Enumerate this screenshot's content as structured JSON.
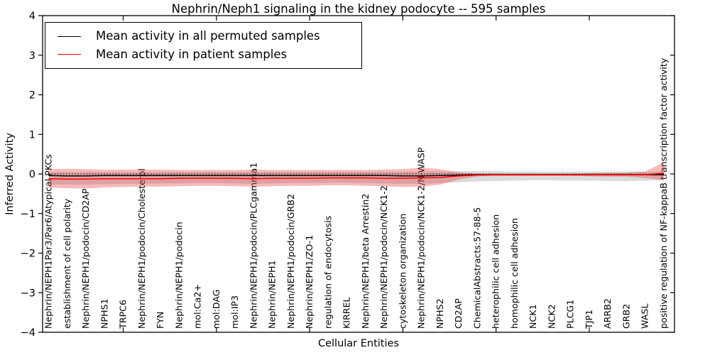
{
  "title": "Nephrin/Neph1 signaling in the kidney podocyte -- 595 samples",
  "axes": {
    "x_label": "Cellular Entities",
    "y_label": "Inferred Activity"
  },
  "legend": {
    "items": [
      {
        "label": "Mean activity in all permuted samples",
        "color": "#000000"
      },
      {
        "label": "Mean activity in patient samples",
        "color": "#ff0000"
      }
    ]
  },
  "chart_data": {
    "type": "line",
    "title": "Nephrin/Neph1 signaling in the kidney podocyte -- 595 samples",
    "xlabel": "Cellular Entities",
    "ylabel": "Inferred Activity",
    "ylim": [
      -4,
      4
    ],
    "yticks": [
      4,
      3,
      2,
      1,
      0,
      -1,
      -2,
      -3,
      -4
    ],
    "x_major_tick_indices": [
      4,
      9,
      14,
      19,
      24,
      29
    ],
    "grid": false,
    "legend_position": "upper left",
    "zero_line": 0,
    "categories": [
      "Nephrin/NEPH1Par3/Par6/Atypical PKCs",
      "establishment of cell polarity",
      "Nephrin/NEPH1/podocin/CD2AP",
      "NPHS1",
      "TRPC6",
      "Nephrin/NEPH1/podocin/Cholesterol",
      "FYN",
      "Nephrin/NEPH1/podocin",
      "mol:Ca2+",
      "mol:DAG",
      "mol:IP3",
      "Nephrin/NEPH1/podocin/PLCgamma1",
      "Nephrin/NEPH1",
      "Nephrin/NEPH1/podocin/GRB2",
      "Nephrin/NEPH1/ZO-1",
      "regulation of endocytosis",
      "KIRREL",
      "Nephrin/NEPH1/beta Arrestin2",
      "Nephrin/NEPH1/podocin/NCK1-2",
      "cytoskeleton organization",
      "Nephrin/NEPH1/podocin/NCK1-2/N-WASP",
      "NPHS2",
      "CD2AP",
      "ChemicalAbstracts:57-88-5",
      "heterophilic cell adhesion",
      "homophilic cell adhesion",
      "NCK1",
      "NCK2",
      "PLCG1",
      "TJP1",
      "ARRB2",
      "GRB2",
      "WASL",
      "positive regulation of NF-kappaB transcription factor activity"
    ],
    "series": [
      {
        "name": "Mean activity in all permuted samples",
        "color": "#000000",
        "values": [
          -0.04,
          -0.05,
          -0.05,
          -0.04,
          -0.04,
          -0.04,
          -0.04,
          -0.04,
          -0.04,
          -0.04,
          -0.04,
          -0.04,
          -0.04,
          -0.04,
          -0.04,
          -0.04,
          -0.04,
          -0.04,
          -0.04,
          -0.05,
          -0.05,
          -0.04,
          -0.03,
          -0.02,
          -0.02,
          -0.02,
          -0.02,
          -0.02,
          -0.02,
          -0.02,
          -0.02,
          -0.02,
          -0.02,
          -0.02
        ]
      },
      {
        "name": "Mean activity in patient samples",
        "color": "#ff0000",
        "values": [
          -0.12,
          -0.13,
          -0.13,
          -0.12,
          -0.12,
          -0.12,
          -0.12,
          -0.11,
          -0.11,
          -0.11,
          -0.11,
          -0.12,
          -0.11,
          -0.11,
          -0.11,
          -0.1,
          -0.1,
          -0.1,
          -0.11,
          -0.11,
          -0.1,
          -0.09,
          -0.05,
          -0.03,
          -0.02,
          -0.02,
          -0.02,
          -0.02,
          -0.02,
          -0.02,
          -0.02,
          -0.02,
          -0.02,
          0.02
        ]
      }
    ],
    "bands": [
      {
        "name": "permuted-samples-std-band",
        "color": "#909090",
        "opacity": 0.32,
        "upper": [
          0.05,
          0.05,
          0.05,
          0.05,
          0.05,
          0.05,
          0.05,
          0.05,
          0.05,
          0.05,
          0.05,
          0.05,
          0.05,
          0.05,
          0.05,
          0.05,
          0.05,
          0.05,
          0.05,
          0.05,
          0.06,
          0.06,
          0.07,
          0.07,
          0.07,
          0.06,
          0.06,
          0.06,
          0.06,
          0.06,
          0.06,
          0.06,
          0.06,
          0.06
        ],
        "lower": [
          -0.26,
          -0.27,
          -0.27,
          -0.26,
          -0.25,
          -0.25,
          -0.24,
          -0.24,
          -0.23,
          -0.23,
          -0.24,
          -0.25,
          -0.24,
          -0.23,
          -0.23,
          -0.22,
          -0.22,
          -0.23,
          -0.24,
          -0.25,
          -0.25,
          -0.23,
          -0.21,
          -0.19,
          -0.18,
          -0.17,
          -0.16,
          -0.16,
          -0.17,
          -0.17,
          -0.18,
          -0.18,
          -0.17,
          -0.16
        ]
      },
      {
        "name": "patient-samples-std-band",
        "color": "#e41a1c",
        "opacity": 0.3,
        "upper": [
          0.12,
          0.13,
          0.12,
          0.11,
          0.11,
          0.11,
          0.11,
          0.1,
          0.1,
          0.1,
          0.1,
          0.11,
          0.1,
          0.1,
          0.1,
          0.1,
          0.1,
          0.1,
          0.11,
          0.12,
          0.16,
          0.12,
          0.04,
          0.01,
          0.01,
          0.01,
          0.01,
          0.01,
          0.01,
          0.02,
          0.03,
          0.03,
          0.06,
          0.3
        ],
        "lower": [
          -0.34,
          -0.36,
          -0.37,
          -0.34,
          -0.33,
          -0.32,
          -0.32,
          -0.31,
          -0.3,
          -0.3,
          -0.31,
          -0.32,
          -0.31,
          -0.3,
          -0.3,
          -0.29,
          -0.29,
          -0.3,
          -0.31,
          -0.33,
          -0.32,
          -0.27,
          -0.14,
          -0.06,
          -0.05,
          -0.05,
          -0.05,
          -0.05,
          -0.05,
          -0.06,
          -0.07,
          -0.07,
          -0.1,
          -0.16
        ]
      }
    ]
  }
}
